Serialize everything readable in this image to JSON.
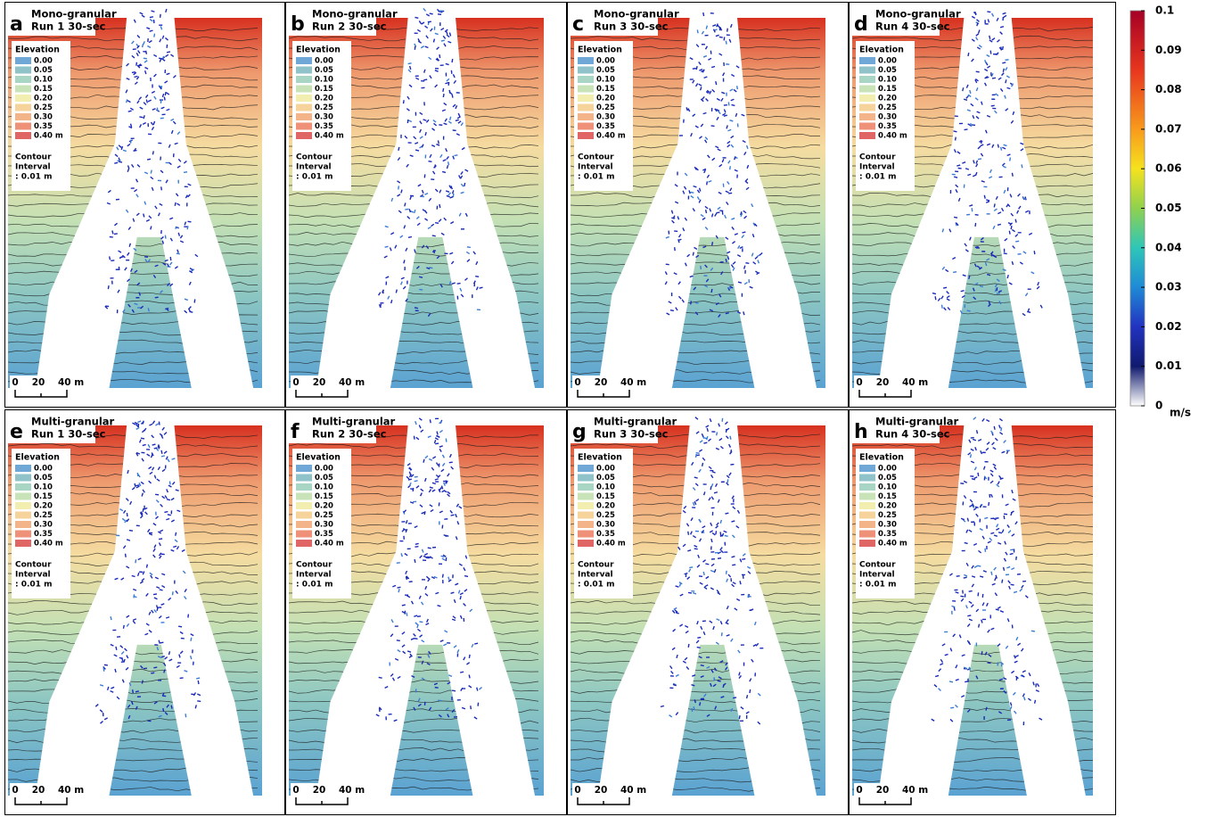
{
  "panels": [
    {
      "letter": "a",
      "title": [
        "Mono-granular",
        "Run 1 30-sec"
      ]
    },
    {
      "letter": "b",
      "title": [
        "Mono-granular",
        "Run 2 30-sec"
      ]
    },
    {
      "letter": "c",
      "title": [
        "Mono-granular",
        "Run 3 30-sec"
      ]
    },
    {
      "letter": "d",
      "title": [
        "Mono-granular",
        "Run 4 30-sec"
      ]
    },
    {
      "letter": "e",
      "title": [
        "Multi-granular",
        "Run 1 30-sec"
      ]
    },
    {
      "letter": "f",
      "title": [
        "Multi-granular",
        "Run 2 30-sec"
      ]
    },
    {
      "letter": "g",
      "title": [
        "Multi-granular",
        "Run 3 30-sec"
      ]
    },
    {
      "letter": "h",
      "title": [
        "Multi-granular",
        "Run 4 30-sec"
      ]
    }
  ],
  "legend": {
    "title": "Elevation",
    "labels": [
      "0.00",
      "0.05",
      "0.10",
      "0.15",
      "0.20",
      "0.25",
      "0.30",
      "0.35",
      "0.40 m"
    ],
    "colors": [
      "#6fa8d6",
      "#8fc3c9",
      "#a9d5c4",
      "#c8e3b8",
      "#f2eeb0",
      "#f7d39c",
      "#f3b48a",
      "#ee9178",
      "#e06666"
    ]
  },
  "contour": [
    "Contour",
    "Interval",
    ": 0.01 m"
  ],
  "scale_bar": [
    "0",
    "20",
    "40 m"
  ],
  "colorbar": {
    "ticks": [
      0.1,
      0.09,
      0.08,
      0.07,
      0.06,
      0.05,
      0.04,
      0.03,
      0.02,
      0.01,
      0
    ],
    "unit": "m/s"
  }
}
